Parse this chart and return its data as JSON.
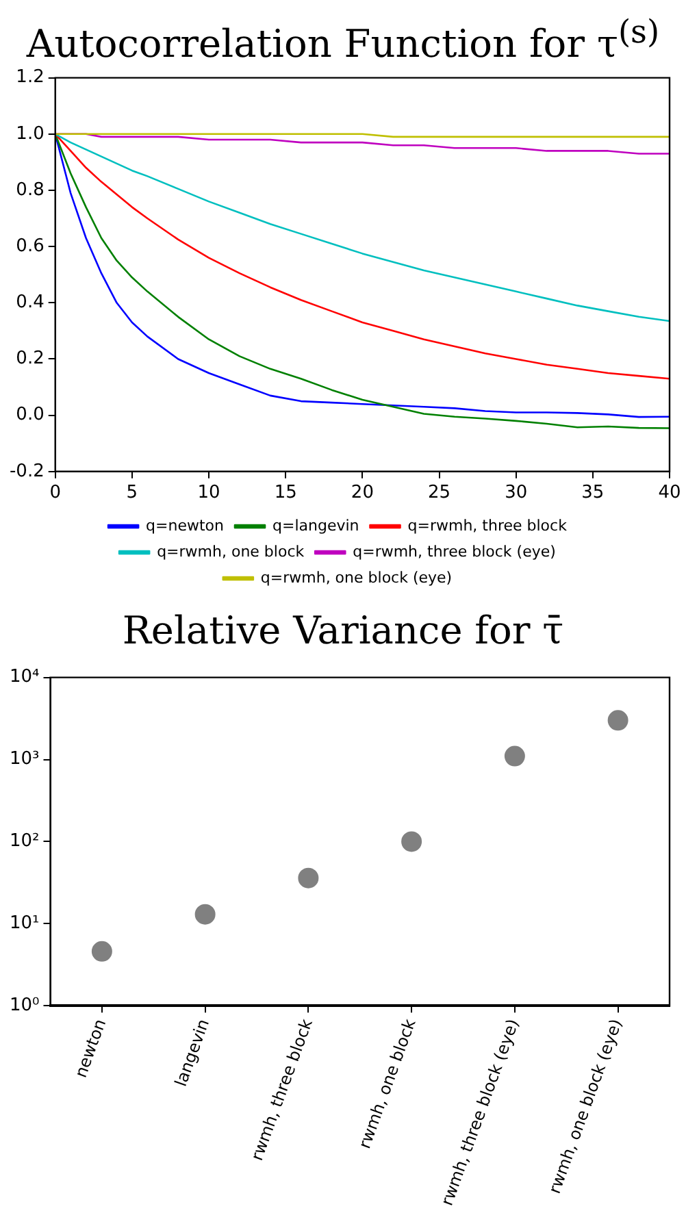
{
  "chart_data": [
    {
      "type": "line",
      "title": "Autocorrelation Function for τ$^{(s)}$",
      "x": [
        0,
        1,
        2,
        3,
        4,
        5,
        6,
        8,
        10,
        12,
        14,
        16,
        18,
        20,
        22,
        24,
        26,
        28,
        30,
        32,
        34,
        36,
        38,
        40
      ],
      "series": [
        {
          "name": "q=newton",
          "color": "#0000ff",
          "values": [
            1.0,
            0.79,
            0.63,
            0.505,
            0.4,
            0.33,
            0.28,
            0.2,
            0.15,
            0.11,
            0.07,
            0.05,
            0.045,
            0.04,
            0.035,
            0.03,
            0.025,
            0.015,
            0.01,
            0.01,
            0.008,
            0.003,
            -0.006,
            -0.005
          ]
        },
        {
          "name": "q=langevin",
          "color": "#008000",
          "values": [
            1.0,
            0.86,
            0.74,
            0.63,
            0.55,
            0.49,
            0.44,
            0.35,
            0.27,
            0.21,
            0.165,
            0.13,
            0.09,
            0.055,
            0.03,
            0.005,
            -0.005,
            -0.012,
            -0.02,
            -0.03,
            -0.043,
            -0.04,
            -0.045,
            -0.046
          ]
        },
        {
          "name": "q=rwmh, three block",
          "color": "#ff0000",
          "values": [
            1.0,
            0.94,
            0.88,
            0.83,
            0.785,
            0.74,
            0.7,
            0.625,
            0.56,
            0.505,
            0.455,
            0.41,
            0.37,
            0.33,
            0.3,
            0.27,
            0.245,
            0.22,
            0.2,
            0.18,
            0.165,
            0.15,
            0.14,
            0.13
          ]
        },
        {
          "name": "q=rwmh, one block",
          "color": "#00bfbf",
          "values": [
            1.0,
            0.97,
            0.945,
            0.92,
            0.895,
            0.87,
            0.85,
            0.805,
            0.76,
            0.72,
            0.68,
            0.645,
            0.61,
            0.575,
            0.545,
            0.515,
            0.49,
            0.465,
            0.44,
            0.415,
            0.39,
            0.37,
            0.35,
            0.335
          ]
        },
        {
          "name": "q=rwmh, three block (eye)",
          "color": "#bf00bf",
          "values": [
            1.0,
            1.0,
            1.0,
            0.99,
            0.99,
            0.99,
            0.99,
            0.99,
            0.98,
            0.98,
            0.98,
            0.97,
            0.97,
            0.97,
            0.96,
            0.96,
            0.95,
            0.95,
            0.95,
            0.94,
            0.94,
            0.94,
            0.93,
            0.93
          ]
        },
        {
          "name": "q=rwmh, one block (eye)",
          "color": "#bfbf00",
          "values": [
            1.0,
            1.0,
            1.0,
            1.0,
            1.0,
            1.0,
            1.0,
            1.0,
            1.0,
            1.0,
            1.0,
            1.0,
            1.0,
            1.0,
            0.99,
            0.99,
            0.99,
            0.99,
            0.99,
            0.99,
            0.99,
            0.99,
            0.99,
            0.99
          ]
        }
      ],
      "xlim": [
        0,
        40
      ],
      "xticks": [
        0,
        5,
        10,
        15,
        20,
        25,
        30,
        35,
        40
      ],
      "ylim": [
        -0.2,
        1.2
      ],
      "yticks": [
        {
          "value": -0.2,
          "label": "-0.2"
        },
        {
          "value": 0,
          "label": "0.0"
        },
        {
          "value": 0.2,
          "label": "0.2"
        },
        {
          "value": 0.4,
          "label": "0.4"
        },
        {
          "value": 0.6,
          "label": "0.6"
        },
        {
          "value": 0.8,
          "label": "0.8"
        },
        {
          "value": 1,
          "label": "1.0"
        },
        {
          "value": 1.2,
          "label": "1.2"
        }
      ],
      "grid": false,
      "legend": "bottom",
      "marker": "none",
      "line_style": "solid"
    },
    {
      "type": "scatter",
      "title": "Relative Variance for τ̄",
      "categories": [
        "newton",
        "langevin",
        "rwmh, three block",
        "rwmh, one block",
        "rwmh, three block (eye)",
        "rwmh, one block (eye)"
      ],
      "values": [
        4.6,
        13,
        36,
        100,
        1100,
        3000
      ],
      "color": "#808080",
      "ylim": [
        1,
        10000
      ],
      "yticks": [
        {
          "value": 1,
          "label": "10⁰"
        },
        {
          "value": 10,
          "label": "10¹"
        },
        {
          "value": 100,
          "label": "10²"
        },
        {
          "value": 1000,
          "label": "10³"
        },
        {
          "value": 10000,
          "label": "10⁴"
        }
      ],
      "log": "y",
      "grid": false,
      "legend": false,
      "marker": "circle"
    }
  ]
}
